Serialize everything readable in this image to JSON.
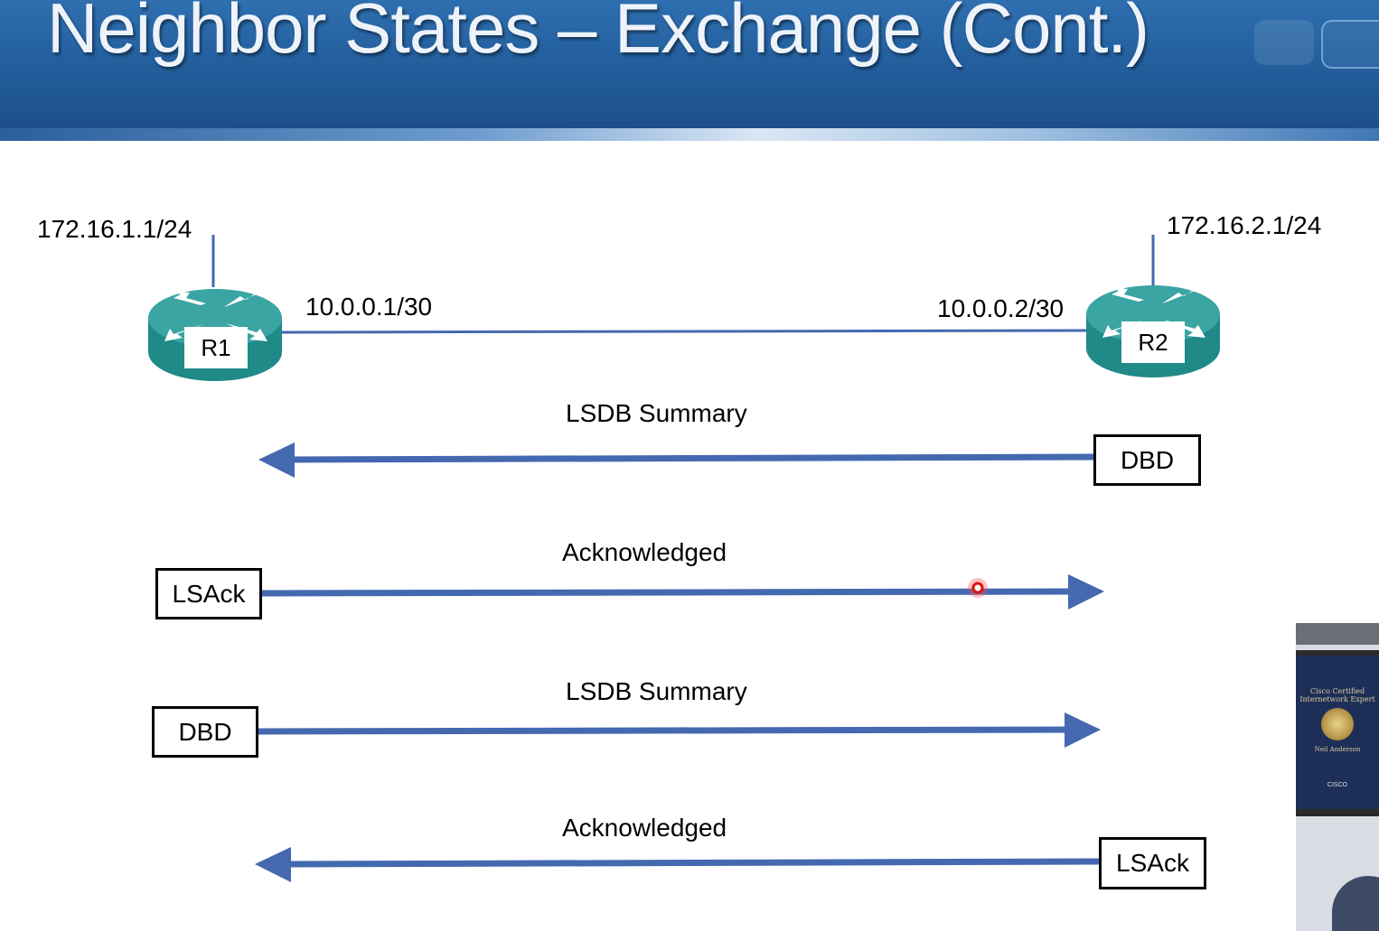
{
  "slide": {
    "title": "Neighbor States – Exchange (Cont.)"
  },
  "routers": {
    "r1": {
      "name": "R1",
      "lan_ip": "172.16.1.1/24",
      "link_ip": "10.0.0.1/30"
    },
    "r2": {
      "name": "R2",
      "lan_ip": "172.16.2.1/24",
      "link_ip": "10.0.0.2/30"
    }
  },
  "exchanges": [
    {
      "caption": "LSDB Summary",
      "packet": "DBD",
      "direction": "R2 to R1"
    },
    {
      "caption": "Acknowledged",
      "packet": "LSAck",
      "direction": "R1 to R2"
    },
    {
      "caption": "LSDB Summary",
      "packet": "DBD",
      "direction": "R1 to R2"
    },
    {
      "caption": "Acknowledged",
      "packet": "LSAck",
      "direction": "R2 to R1"
    }
  ],
  "webcam": {
    "cert_heading": "Cisco Certified Internetwork Expert",
    "cert_name": "Neil Anderson",
    "cert_brand": "CISCO"
  },
  "colors": {
    "header": "#24609f",
    "arrow": "#4469b0",
    "router_top": "#3aa5a3",
    "router_side": "#1f8a87"
  }
}
